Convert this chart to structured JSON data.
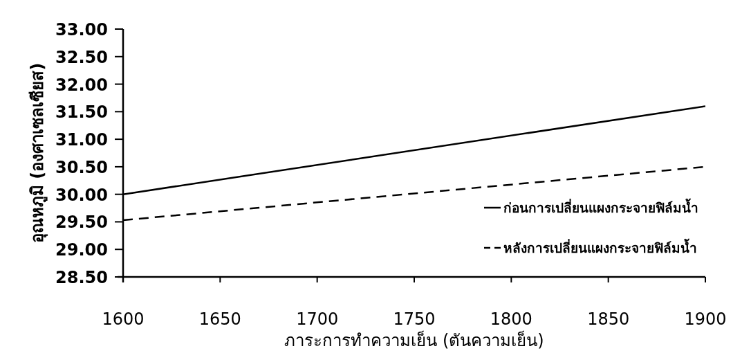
{
  "chart_data": {
    "type": "line",
    "xlabel": "ภาระการทำความเย็น (ตันความเย็น)",
    "ylabel": "อุณหภูมิ (องศาเซลเซียส)",
    "x": [
      1600,
      1900
    ],
    "series": [
      {
        "name": "ก่อนการเปลี่ยนแผงกระจายฟิล์มน้ำ",
        "color": "#000000",
        "line_style": "solid",
        "values": [
          30.0,
          31.6
        ]
      },
      {
        "name": "หลังการเปลี่ยนแผงกระจายฟิล์มน้ำ",
        "color": "#000000",
        "line_style": "dashed",
        "values": [
          29.53,
          30.5
        ]
      }
    ],
    "xlim": [
      1600,
      1900
    ],
    "xticks": [
      1600,
      1650,
      1700,
      1750,
      1800,
      1850,
      1900
    ],
    "ylim": [
      28.5,
      33
    ],
    "yticks": [
      {
        "value": 28.5,
        "label": "28.50"
      },
      {
        "value": 29,
        "label": "29.00"
      },
      {
        "value": 29.5,
        "label": "29.50"
      },
      {
        "value": 30,
        "label": "30.00"
      },
      {
        "value": 30.5,
        "label": "30.50"
      },
      {
        "value": 31,
        "label": "31.00"
      },
      {
        "value": 31.5,
        "label": "31.50"
      },
      {
        "value": 32,
        "label": "32.00"
      },
      {
        "value": 32.5,
        "label": "32.50"
      },
      {
        "value": 33,
        "label": "33.00"
      }
    ],
    "legend": "right"
  }
}
